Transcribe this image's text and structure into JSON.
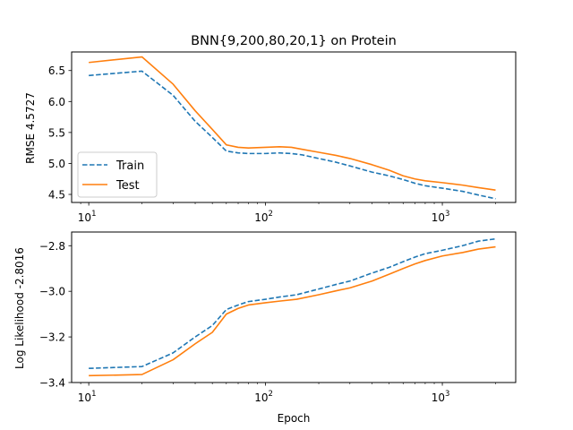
{
  "chart_data": [
    {
      "type": "line",
      "title": "BNN{9,200,80,20,1} on Protein",
      "xlabel": "",
      "ylabel": "RMSE 4.5727",
      "xscale": "log",
      "xlim": [
        8,
        2600
      ],
      "ylim": [
        4.37,
        6.8
      ],
      "xticks": [
        10,
        100,
        1000
      ],
      "xtick_labels": [
        {
          "base": "10",
          "exp": "1"
        },
        {
          "base": "10",
          "exp": "2"
        },
        {
          "base": "10",
          "exp": "3"
        }
      ],
      "yticks": [
        4.5,
        5.0,
        5.5,
        6.0,
        6.5
      ],
      "ytick_labels": [
        "4.5",
        "5.0",
        "5.5",
        "6.0",
        "6.5"
      ],
      "legend": "lower-left",
      "series": [
        {
          "name": "Train",
          "color": "#1f77b4",
          "style": "dashed",
          "points": [
            [
              10,
              6.42
            ],
            [
              20,
              6.49
            ],
            [
              30,
              6.1
            ],
            [
              40,
              5.68
            ],
            [
              50,
              5.42
            ],
            [
              60,
              5.2
            ],
            [
              70,
              5.17
            ],
            [
              80,
              5.16
            ],
            [
              100,
              5.16
            ],
            [
              120,
              5.17
            ],
            [
              140,
              5.16
            ],
            [
              160,
              5.14
            ],
            [
              200,
              5.08
            ],
            [
              250,
              5.02
            ],
            [
              300,
              4.96
            ],
            [
              400,
              4.86
            ],
            [
              500,
              4.8
            ],
            [
              600,
              4.74
            ],
            [
              700,
              4.68
            ],
            [
              800,
              4.64
            ],
            [
              1000,
              4.6
            ],
            [
              1300,
              4.55
            ],
            [
              1600,
              4.49
            ],
            [
              2000,
              4.43
            ]
          ]
        },
        {
          "name": "Test",
          "color": "#ff7f0e",
          "style": "solid",
          "points": [
            [
              10,
              6.63
            ],
            [
              20,
              6.72
            ],
            [
              30,
              6.28
            ],
            [
              40,
              5.85
            ],
            [
              50,
              5.55
            ],
            [
              60,
              5.3
            ],
            [
              70,
              5.26
            ],
            [
              80,
              5.25
            ],
            [
              100,
              5.26
            ],
            [
              120,
              5.27
            ],
            [
              140,
              5.26
            ],
            [
              160,
              5.23
            ],
            [
              200,
              5.18
            ],
            [
              250,
              5.13
            ],
            [
              300,
              5.08
            ],
            [
              400,
              4.98
            ],
            [
              500,
              4.89
            ],
            [
              600,
              4.8
            ],
            [
              700,
              4.75
            ],
            [
              800,
              4.72
            ],
            [
              1000,
              4.69
            ],
            [
              1300,
              4.65
            ],
            [
              1600,
              4.61
            ],
            [
              2000,
              4.57
            ]
          ]
        }
      ]
    },
    {
      "type": "line",
      "title": "",
      "xlabel": "Epoch",
      "ylabel": "Log Likelihood -2.8016",
      "xscale": "log",
      "xlim": [
        8,
        2600
      ],
      "ylim": [
        -3.4,
        -2.74
      ],
      "xticks": [
        10,
        100,
        1000
      ],
      "xtick_labels": [
        {
          "base": "10",
          "exp": "1"
        },
        {
          "base": "10",
          "exp": "2"
        },
        {
          "base": "10",
          "exp": "3"
        }
      ],
      "yticks": [
        -3.4,
        -3.2,
        -3.0,
        -2.8
      ],
      "ytick_labels": [
        "−3.4",
        "−3.2",
        "−3.0",
        "−2.8"
      ],
      "legend": "none",
      "series": [
        {
          "color": "#1f77b4",
          "style": "dashed",
          "points": [
            [
              10,
              -3.338
            ],
            [
              20,
              -3.33
            ],
            [
              30,
              -3.27
            ],
            [
              40,
              -3.2
            ],
            [
              50,
              -3.15
            ],
            [
              60,
              -3.08
            ],
            [
              70,
              -3.06
            ],
            [
              80,
              -3.045
            ],
            [
              100,
              -3.035
            ],
            [
              120,
              -3.025
            ],
            [
              150,
              -3.015
            ],
            [
              200,
              -2.99
            ],
            [
              250,
              -2.97
            ],
            [
              300,
              -2.955
            ],
            [
              400,
              -2.92
            ],
            [
              500,
              -2.895
            ],
            [
              600,
              -2.87
            ],
            [
              700,
              -2.85
            ],
            [
              800,
              -2.835
            ],
            [
              1000,
              -2.82
            ],
            [
              1300,
              -2.8
            ],
            [
              1600,
              -2.78
            ],
            [
              2000,
              -2.77
            ]
          ]
        },
        {
          "color": "#ff7f0e",
          "style": "solid",
          "points": [
            [
              10,
              -3.37
            ],
            [
              20,
              -3.365
            ],
            [
              30,
              -3.3
            ],
            [
              40,
              -3.23
            ],
            [
              50,
              -3.18
            ],
            [
              60,
              -3.1
            ],
            [
              70,
              -3.075
            ],
            [
              80,
              -3.06
            ],
            [
              100,
              -3.05
            ],
            [
              120,
              -3.043
            ],
            [
              150,
              -3.035
            ],
            [
              200,
              -3.015
            ],
            [
              250,
              -2.998
            ],
            [
              300,
              -2.985
            ],
            [
              400,
              -2.955
            ],
            [
              500,
              -2.925
            ],
            [
              600,
              -2.9
            ],
            [
              700,
              -2.88
            ],
            [
              800,
              -2.865
            ],
            [
              1000,
              -2.845
            ],
            [
              1300,
              -2.83
            ],
            [
              1600,
              -2.815
            ],
            [
              2000,
              -2.805
            ]
          ]
        }
      ]
    }
  ]
}
